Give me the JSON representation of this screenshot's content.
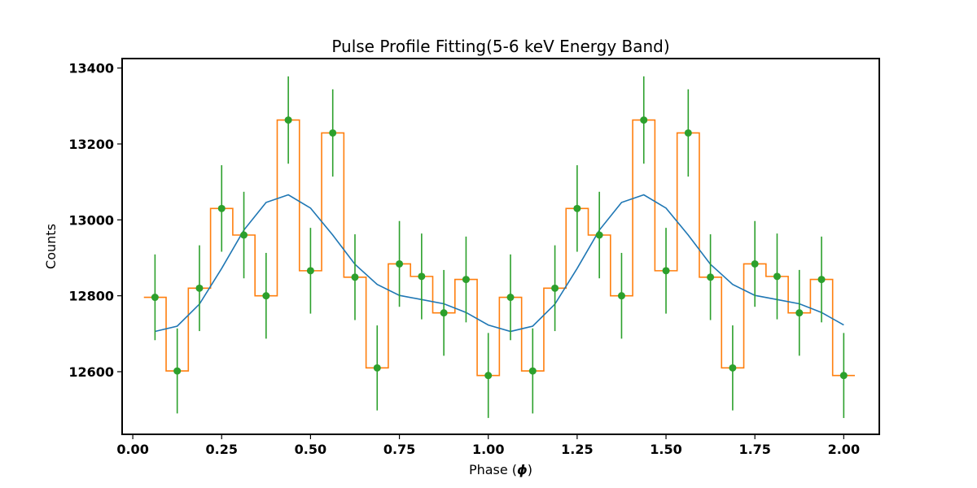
{
  "chart_data": {
    "type": "line",
    "title": "Pulse Profile Fitting(5-6 keV Energy Band)",
    "xlabel": "Phase (",
    "xlabel_symbol": "ϕ",
    "xlabel_end": ")",
    "ylabel": "Counts",
    "xlim": [
      -0.03,
      2.1
    ],
    "ylim": [
      12435,
      13425
    ],
    "xticks": [
      0.0,
      0.25,
      0.5,
      0.75,
      1.0,
      1.25,
      1.5,
      1.75,
      2.0
    ],
    "xtick_labels": [
      "0.00",
      "0.25",
      "0.50",
      "0.75",
      "1.00",
      "1.25",
      "1.50",
      "1.75",
      "2.00"
    ],
    "yticks": [
      12600,
      12800,
      13000,
      13200,
      13400
    ],
    "ytick_labels": [
      "12600",
      "12800",
      "13000",
      "13200",
      "13400"
    ],
    "x": [
      0.0625,
      0.125,
      0.1875,
      0.25,
      0.3125,
      0.375,
      0.4375,
      0.5,
      0.5625,
      0.625,
      0.6875,
      0.75,
      0.8125,
      0.875,
      0.9375,
      1.0,
      1.0625,
      1.125,
      1.1875,
      1.25,
      1.3125,
      1.375,
      1.4375,
      1.5,
      1.5625,
      1.625,
      1.6875,
      1.75,
      1.8125,
      1.875,
      1.9375,
      2.0
    ],
    "series": [
      {
        "kind": "step",
        "color": "#ff7f0e",
        "values": [
          12796,
          12602,
          12820,
          13030,
          12960,
          12800,
          13263,
          12866,
          13229,
          12849,
          12610,
          12884,
          12851,
          12755,
          12843,
          12590,
          12796,
          12602,
          12820,
          13030,
          12960,
          12800,
          13263,
          12866,
          13229,
          12849,
          12610,
          12884,
          12851,
          12755,
          12843,
          12590
        ]
      },
      {
        "kind": "errorbar",
        "color": "#2ca02c",
        "values": [
          12796,
          12602,
          12820,
          13030,
          12960,
          12800,
          13263,
          12866,
          13229,
          12849,
          12610,
          12884,
          12851,
          12755,
          12843,
          12590,
          12796,
          12602,
          12820,
          13030,
          12960,
          12800,
          13263,
          12866,
          13229,
          12849,
          12610,
          12884,
          12851,
          12755,
          12843,
          12590
        ],
        "errors": [
          113,
          112,
          113,
          114,
          114,
          113,
          115,
          113,
          115,
          113,
          112,
          113,
          113,
          113,
          113,
          112,
          113,
          112,
          113,
          114,
          114,
          113,
          115,
          113,
          115,
          113,
          112,
          113,
          113,
          113,
          113,
          112
        ]
      },
      {
        "kind": "line",
        "color": "#1f77b4",
        "values": [
          12706,
          12720,
          12778,
          12872,
          12973,
          13046,
          13066,
          13031,
          12960,
          12883,
          12830,
          12801,
          12790,
          12779,
          12756,
          12723,
          12706,
          12720,
          12778,
          12872,
          12973,
          13046,
          13066,
          13031,
          12960,
          12883,
          12830,
          12801,
          12790,
          12779,
          12756,
          12723
        ]
      }
    ],
    "grid": false,
    "legend": "none"
  }
}
